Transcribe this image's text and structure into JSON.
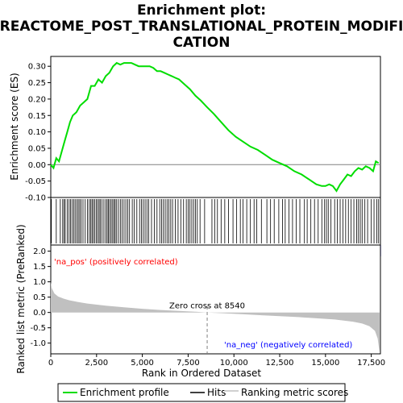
{
  "chart_data": {
    "type": "line",
    "title_lines": [
      "Enrichment plot:",
      "REACTOME_POST_TRANSLATIONAL_PROTEIN_MODIFI",
      "CATION"
    ],
    "es_panel": {
      "ylabel": "Enrichment score (ES)",
      "ylim": [
        -0.1,
        0.33
      ],
      "yticks": [
        0.3,
        0.25,
        0.2,
        0.15,
        0.1,
        0.05,
        0.0,
        -0.05,
        -0.1
      ],
      "ytick_labels": [
        "0.30",
        "0.25",
        "0.20",
        "0.15",
        "0.10",
        "0.05",
        "0.00",
        "-0.05",
        "-0.10"
      ],
      "series_name": "Enrichment profile",
      "color": "#00dd00",
      "x": [
        0,
        150,
        300,
        450,
        600,
        750,
        900,
        1050,
        1200,
        1400,
        1600,
        1800,
        2000,
        2200,
        2400,
        2600,
        2800,
        3000,
        3200,
        3400,
        3600,
        3800,
        4000,
        4200,
        4400,
        4600,
        4800,
        5000,
        5200,
        5400,
        5600,
        5800,
        6000,
        6200,
        6400,
        6600,
        6800,
        7000,
        7300,
        7600,
        7900,
        8200,
        8540,
        8900,
        9300,
        9700,
        10100,
        10500,
        10900,
        11300,
        11700,
        12100,
        12500,
        12900,
        13300,
        13700,
        14100,
        14500,
        14800,
        15000,
        15200,
        15400,
        15600,
        15800,
        16000,
        16200,
        16400,
        16600,
        16800,
        17000,
        17200,
        17400,
        17600,
        17750,
        17900
      ],
      "y": [
        0.0,
        -0.01,
        0.02,
        0.01,
        0.04,
        0.07,
        0.1,
        0.13,
        0.15,
        0.16,
        0.18,
        0.19,
        0.2,
        0.24,
        0.24,
        0.26,
        0.25,
        0.27,
        0.28,
        0.3,
        0.31,
        0.305,
        0.31,
        0.31,
        0.31,
        0.305,
        0.3,
        0.3,
        0.3,
        0.3,
        0.295,
        0.285,
        0.285,
        0.28,
        0.275,
        0.27,
        0.265,
        0.26,
        0.245,
        0.23,
        0.21,
        0.195,
        0.175,
        0.155,
        0.13,
        0.105,
        0.085,
        0.07,
        0.055,
        0.045,
        0.03,
        0.015,
        0.005,
        -0.005,
        -0.02,
        -0.03,
        -0.045,
        -0.06,
        -0.065,
        -0.065,
        -0.06,
        -0.065,
        -0.08,
        -0.06,
        -0.045,
        -0.03,
        -0.035,
        -0.02,
        -0.01,
        -0.015,
        -0.005,
        -0.01,
        -0.02,
        0.01,
        0.005
      ]
    },
    "hits": [
      30,
      300,
      520,
      650,
      720,
      790,
      900,
      1000,
      1080,
      1160,
      1250,
      1330,
      1420,
      1500,
      1580,
      1660,
      1760,
      1880,
      2000,
      2100,
      2180,
      2250,
      2320,
      2400,
      2480,
      2560,
      2640,
      2700,
      2800,
      2900,
      3000,
      3080,
      3150,
      3220,
      3300,
      3380,
      3450,
      3520,
      3600,
      3700,
      3800,
      3900,
      4000,
      4100,
      4200,
      4300,
      4450,
      4550,
      4700,
      4850,
      4950,
      5050,
      5150,
      5250,
      5350,
      5500,
      5650,
      5800,
      5950,
      6050,
      6150,
      6250,
      6350,
      6450,
      6550,
      6650,
      6800,
      6950,
      7100,
      7250,
      7400,
      7500,
      7600,
      7700,
      7800,
      7900,
      8000,
      8150,
      8400,
      8800,
      8950,
      9100,
      9300,
      9500,
      9700,
      9950,
      10150,
      10350,
      10500,
      10700,
      10900,
      11100,
      11250,
      11500,
      11800,
      12000,
      12200,
      12450,
      12650,
      12800,
      13000,
      13200,
      13400,
      13600,
      13850,
      14000,
      14200,
      14400,
      14600,
      14800,
      14950,
      15050,
      15150,
      15300,
      15500,
      15650,
      15800,
      15950,
      16100,
      16250,
      16400,
      16550,
      16700,
      16800,
      16900,
      17000,
      17150,
      17300,
      17500,
      17650,
      17800,
      17900
    ],
    "metric_panel": {
      "ylabel": "Ranked list metric (PreRanked)",
      "xlabel": "Rank in Ordered Dataset",
      "xlim": [
        0,
        18000
      ],
      "xticks": [
        0,
        2500,
        5000,
        7500,
        10000,
        12500,
        15000,
        17500
      ],
      "xtick_labels": [
        "0",
        "2,500",
        "5,000",
        "7,500",
        "10,000",
        "12,500",
        "15,000",
        "17,500"
      ],
      "ylim": [
        -1.35,
        2.2
      ],
      "yticks": [
        2.0,
        1.5,
        1.0,
        0.5,
        0.0,
        -0.5,
        -1.0
      ],
      "ytick_labels": [
        "2.0",
        "1.5",
        "1.0",
        "0.5",
        "0.0",
        "-0.5",
        "-1.0"
      ],
      "x": [
        0,
        50,
        200,
        400,
        700,
        1000,
        1500,
        2000,
        3000,
        4000,
        5000,
        6000,
        7000,
        8000,
        8540,
        9500,
        10500,
        11500,
        12500,
        13500,
        14500,
        15500,
        16500,
        17000,
        17400,
        17700,
        17850,
        17950
      ],
      "y": [
        1.0,
        0.8,
        0.62,
        0.52,
        0.45,
        0.4,
        0.34,
        0.29,
        0.22,
        0.17,
        0.12,
        0.08,
        0.05,
        0.02,
        0.0,
        -0.03,
        -0.06,
        -0.09,
        -0.12,
        -0.15,
        -0.19,
        -0.23,
        -0.3,
        -0.36,
        -0.45,
        -0.6,
        -0.85,
        -1.3
      ],
      "zero_cross_label": "Zero cross at 8540",
      "zero_cross": 8540,
      "pos_label": "'na_pos' (positively correlated)",
      "neg_label": "'na_neg' (negatively correlated)",
      "pos_color": "#ff0000",
      "neg_color": "#0000ff"
    },
    "legend": [
      {
        "label": "Enrichment profile",
        "color": "#00dd00"
      },
      {
        "label": "Hits",
        "color": "#000000"
      },
      {
        "label": "Ranking metric scores",
        "color": "#c0c0c0"
      }
    ]
  }
}
